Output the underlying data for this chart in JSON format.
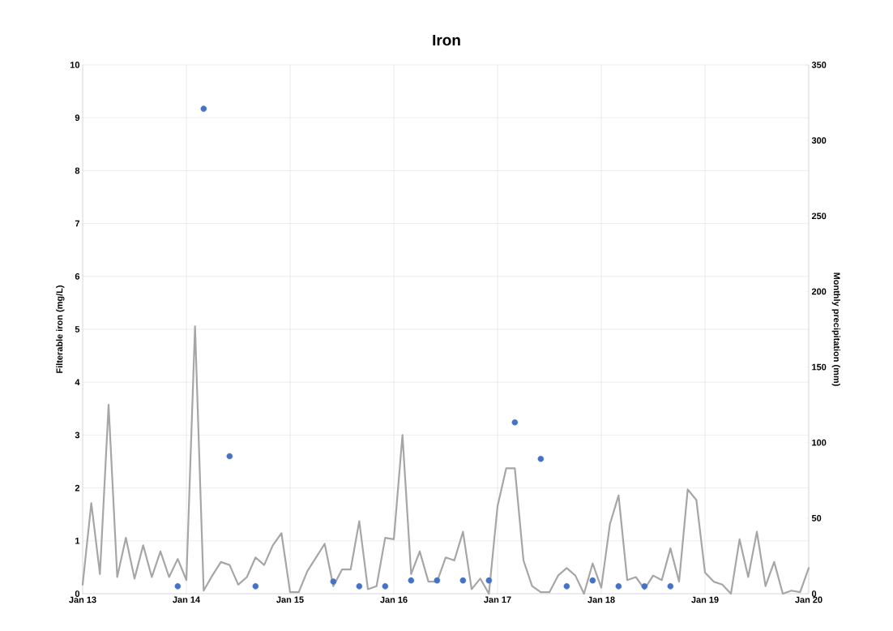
{
  "chart_data": {
    "type": "line",
    "title": "Iron",
    "ylabel": "Filterable iron (mg/L)",
    "y2label": "Monthly precipitation (mm)",
    "xlim": [
      "2013-01",
      "2020-01"
    ],
    "xticks": [
      {
        "value": "2013-01",
        "label": "Jan 13"
      },
      {
        "value": "2014-01",
        "label": "Jan 14"
      },
      {
        "value": "2015-01",
        "label": "Jan 15"
      },
      {
        "value": "2016-01",
        "label": "Jan 16"
      },
      {
        "value": "2017-01",
        "label": "Jan 17"
      },
      {
        "value": "2018-01",
        "label": "Jan 18"
      },
      {
        "value": "2019-01",
        "label": "Jan 19"
      },
      {
        "value": "2020-01",
        "label": "Jan 20"
      }
    ],
    "ylim": [
      0,
      10
    ],
    "yticks": [
      0,
      1,
      2,
      3,
      4,
      5,
      6,
      7,
      8,
      9,
      10
    ],
    "y2lim": [
      0,
      350
    ],
    "y2ticks": [
      0,
      50,
      100,
      150,
      200,
      250,
      300,
      350
    ],
    "grid": true,
    "series": [
      {
        "axis": "y2",
        "color": "#a6a6a6",
        "marker": "none",
        "x": [
          "2013-01",
          "2013-02",
          "2013-03",
          "2013-04",
          "2013-05",
          "2013-06",
          "2013-07",
          "2013-08",
          "2013-09",
          "2013-10",
          "2013-11",
          "2013-12",
          "2014-01",
          "2014-02",
          "2014-03",
          "2014-04",
          "2014-05",
          "2014-06",
          "2014-07",
          "2014-08",
          "2014-09",
          "2014-10",
          "2014-11",
          "2014-12",
          "2015-01",
          "2015-02",
          "2015-03",
          "2015-04",
          "2015-05",
          "2015-06",
          "2015-07",
          "2015-08",
          "2015-09",
          "2015-10",
          "2015-11",
          "2015-12",
          "2016-01",
          "2016-02",
          "2016-03",
          "2016-04",
          "2016-05",
          "2016-06",
          "2016-07",
          "2016-08",
          "2016-09",
          "2016-10",
          "2016-11",
          "2016-12",
          "2017-01",
          "2017-02",
          "2017-03",
          "2017-04",
          "2017-05",
          "2017-06",
          "2017-07",
          "2017-08",
          "2017-09",
          "2017-10",
          "2017-11",
          "2017-12",
          "2018-01",
          "2018-02",
          "2018-03",
          "2018-04",
          "2018-05",
          "2018-06",
          "2018-07",
          "2018-08",
          "2018-09",
          "2018-10",
          "2018-11",
          "2018-12",
          "2019-01",
          "2019-02",
          "2019-03",
          "2019-04",
          "2019-05",
          "2019-06",
          "2019-07",
          "2019-08",
          "2019-09",
          "2019-10",
          "2019-11",
          "2019-12",
          "2020-01"
        ],
        "values": [
          6,
          60,
          13,
          125,
          11,
          37,
          10,
          32,
          11,
          28,
          11,
          23,
          9,
          177,
          2,
          12,
          21,
          19,
          6,
          11,
          24,
          19,
          32,
          40,
          1,
          1,
          15,
          24,
          33,
          5,
          16,
          16,
          48,
          3,
          5,
          37,
          36,
          105,
          13,
          28,
          8,
          8,
          24,
          22,
          41,
          3,
          10,
          0,
          58,
          83,
          83,
          22,
          5,
          1,
          1,
          12,
          17,
          12,
          0,
          20,
          4,
          46,
          65,
          9,
          11,
          3,
          12,
          9,
          30,
          8,
          69,
          62,
          14,
          8,
          6,
          0,
          36,
          11,
          41,
          5,
          21,
          0,
          2,
          1,
          17
        ]
      },
      {
        "type": "scatter",
        "axis": "y",
        "color": "#4472c4",
        "marker": "circle",
        "x": [
          "2013-12",
          "2014-03",
          "2014-06",
          "2014-09",
          "2015-06",
          "2015-09",
          "2015-12",
          "2016-03",
          "2016-06",
          "2016-09",
          "2016-12",
          "2017-03",
          "2017-06",
          "2017-09",
          "2017-12",
          "2018-03",
          "2018-06",
          "2018-09"
        ],
        "values": [
          0.14,
          9.17,
          2.6,
          0.14,
          0.23,
          0.14,
          0.14,
          0.25,
          0.25,
          0.25,
          0.25,
          3.24,
          2.55,
          0.14,
          0.25,
          0.14,
          0.14,
          0.14
        ]
      }
    ]
  }
}
